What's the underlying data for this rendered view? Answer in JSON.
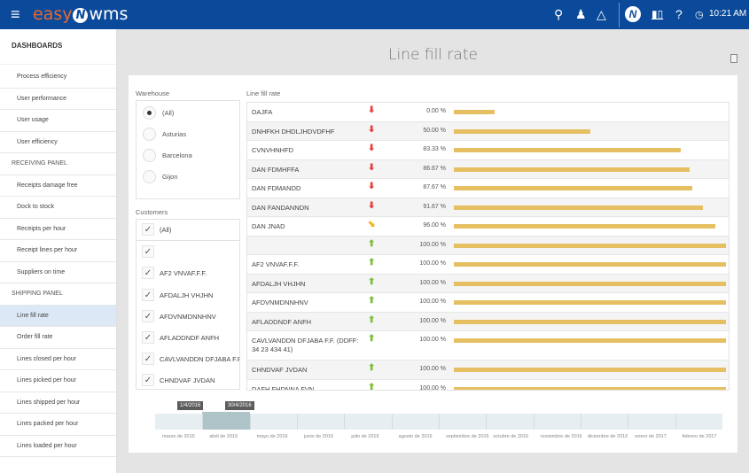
{
  "app": {
    "brand_easy": "easy",
    "brand_wms": "wms",
    "clock": "10:21 AM"
  },
  "topbar_icons": [
    "menu-icon",
    "search-icon",
    "user-icon",
    "bell-icon",
    "brand-badge-icon",
    "reports-icon",
    "help-icon",
    "clock-icon"
  ],
  "sidebar": {
    "header": "DASHBOARDS",
    "items": [
      {
        "label": "Process efficiency",
        "type": "item"
      },
      {
        "label": "User performance",
        "type": "item"
      },
      {
        "label": "User usage",
        "type": "item"
      },
      {
        "label": "User efficiency",
        "type": "item"
      },
      {
        "label": "RECEIVING PANEL",
        "type": "section"
      },
      {
        "label": "Receipts damage free",
        "type": "item"
      },
      {
        "label": "Dock to stock",
        "type": "item"
      },
      {
        "label": "Receipts per hour",
        "type": "item"
      },
      {
        "label": "Receipt lines per hour",
        "type": "item"
      },
      {
        "label": "Suppliers on time",
        "type": "item"
      },
      {
        "label": "SHIPPING PANEL",
        "type": "section"
      },
      {
        "label": "Line fill rate",
        "type": "item",
        "active": true
      },
      {
        "label": "Order fill rate",
        "type": "item"
      },
      {
        "label": "Lines closed per hour",
        "type": "item"
      },
      {
        "label": "Lines picked per hour",
        "type": "item"
      },
      {
        "label": "Lines shipped per hour",
        "type": "item"
      },
      {
        "label": "Lines packed per hour",
        "type": "item"
      },
      {
        "label": "Lines loaded per hour",
        "type": "item"
      }
    ]
  },
  "main": {
    "title": "Line fill rate",
    "warehouse": {
      "label": "Warehouse",
      "options": [
        "(All)",
        "Asturias",
        "Barcelona",
        "Gijon"
      ],
      "selected": "(All)"
    },
    "customers": {
      "label": "Customers",
      "items": [
        {
          "label": "(All)",
          "checked": true
        },
        {
          "label": "",
          "checked": true
        },
        {
          "label": "AF2 VNVAF.F.F.",
          "checked": true
        },
        {
          "label": "AFDALJH VHJHN",
          "checked": true
        },
        {
          "label": "AFDVNMDNNHNV",
          "checked": true
        },
        {
          "label": "AFLADDNDF ANFH",
          "checked": true
        },
        {
          "label": "CAVLVANDDN DFJABA F.F. ...",
          "checked": true
        },
        {
          "label": "CHNDVAF JVDAN",
          "checked": true
        }
      ]
    },
    "table": {
      "label": "Line fill rate",
      "rows": [
        {
          "name": "DAJFA",
          "trend": "down",
          "value": 0.0,
          "display": "0.00 %"
        },
        {
          "name": "DNHFKH DHDLJHDVDFHF",
          "trend": "down",
          "value": 50.0,
          "display": "50.00 %"
        },
        {
          "name": "CVNVHNHFD",
          "trend": "down",
          "value": 83.33,
          "display": "83.33 %"
        },
        {
          "name": "DAN FDMHFFA",
          "trend": "down",
          "value": 86.67,
          "display": "86.67 %"
        },
        {
          "name": "DAN FDMANDD",
          "trend": "down",
          "value": 87.67,
          "display": "87.67 %"
        },
        {
          "name": "DAN FANDANNDN",
          "trend": "down",
          "value": 91.67,
          "display": "91.67 %"
        },
        {
          "name": "DAN JNAD",
          "trend": "neutral",
          "value": 96.0,
          "display": "96.00 %"
        },
        {
          "name": "",
          "trend": "up",
          "value": 100.0,
          "display": "100.00 %"
        },
        {
          "name": "AF2 VNVAF.F.F.",
          "trend": "up",
          "value": 100.0,
          "display": "100.00 %"
        },
        {
          "name": "AFDALJH VHJHN",
          "trend": "up",
          "value": 100.0,
          "display": "100.00 %"
        },
        {
          "name": "AFDVNMDNNHNV",
          "trend": "up",
          "value": 100.0,
          "display": "100.00 %"
        },
        {
          "name": "AFLADDNDF ANFH",
          "trend": "up",
          "value": 100.0,
          "display": "100.00 %"
        },
        {
          "name": "CAVLVANDDN DFJABA F.F. (DDFF: 34 23 434 41)",
          "trend": "up",
          "value": 100.0,
          "display": "100.00 %"
        },
        {
          "name": "CHNDVAF JVDAN",
          "trend": "up",
          "value": 100.0,
          "display": "100.00 %"
        },
        {
          "name": "DAFH FHDNNA FVN",
          "trend": "up",
          "value": 100.0,
          "display": "100.00 %"
        }
      ]
    },
    "timeline": {
      "start_flag": "1/4/2016",
      "end_flag": "30/4/2016",
      "months": [
        "marzo de 2016",
        "abril de 2016",
        "mayo de 2016",
        "junio de 2016",
        "julio de 2016",
        "agosto de 2016",
        "septiembre de 2016",
        "octubre de 2016",
        "noviembre de 2016",
        "diciembre de 2016",
        "enero de 2017",
        "febrero de 2017"
      ]
    }
  },
  "colors": {
    "topbar": "#0b4a9a",
    "brand_orange": "#e8692e",
    "bar": "#e6bf62",
    "trend_down": "#e8403a",
    "trend_neutral": "#f2b21b",
    "trend_up": "#7cbf3a",
    "active_item": "#dce8f6"
  }
}
